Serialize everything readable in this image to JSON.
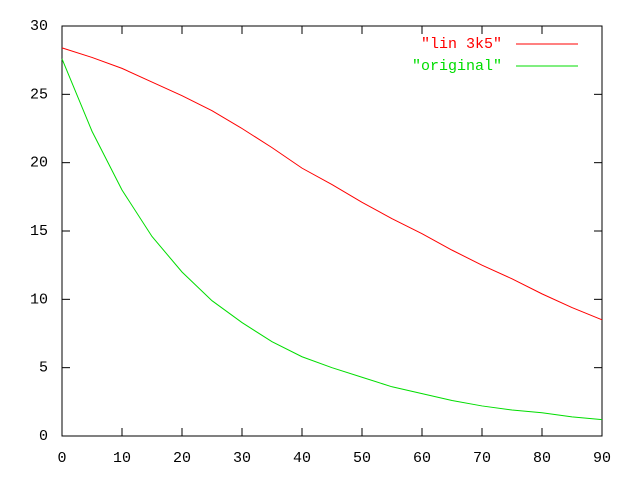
{
  "chart_data": {
    "type": "line",
    "x": [
      0,
      5,
      10,
      15,
      20,
      25,
      30,
      35,
      40,
      45,
      50,
      55,
      60,
      65,
      70,
      75,
      80,
      85,
      90
    ],
    "series": [
      {
        "name": "\"lin 3k5\"",
        "color": "#ff0000",
        "values": [
          28.4,
          27.7,
          26.9,
          25.9,
          24.9,
          23.8,
          22.5,
          21.1,
          19.6,
          18.4,
          17.1,
          15.9,
          14.8,
          13.6,
          12.5,
          11.5,
          10.4,
          9.4,
          8.5
        ]
      },
      {
        "name": "\"original\"",
        "color": "#00dd00",
        "values": [
          27.6,
          22.3,
          18.0,
          14.6,
          12.0,
          9.9,
          8.3,
          6.9,
          5.8,
          5.0,
          4.3,
          3.6,
          3.1,
          2.6,
          2.2,
          1.9,
          1.7,
          1.4,
          1.2
        ]
      }
    ],
    "xlim": [
      0,
      90
    ],
    "xticks": [
      0,
      10,
      20,
      30,
      40,
      50,
      60,
      70,
      80,
      90
    ],
    "ylim": [
      0,
      30
    ],
    "yticks": [
      0,
      5,
      10,
      15,
      20,
      25,
      30
    ],
    "grid": false,
    "legend": "top-right"
  }
}
